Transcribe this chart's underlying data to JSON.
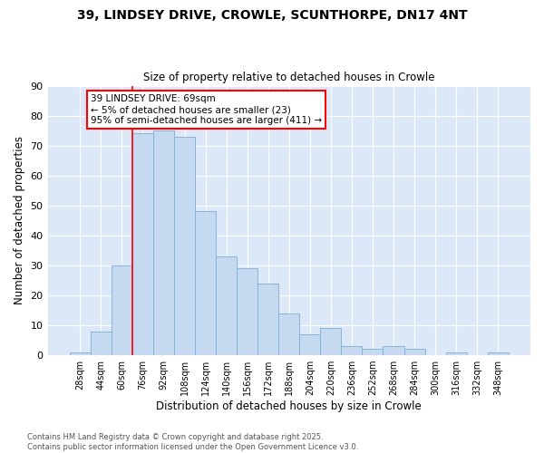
{
  "title_line1": "39, LINDSEY DRIVE, CROWLE, SCUNTHORPE, DN17 4NT",
  "title_line2": "Size of property relative to detached houses in Crowle",
  "xlabel": "Distribution of detached houses by size in Crowle",
  "ylabel": "Number of detached properties",
  "categories": [
    "28sqm",
    "44sqm",
    "60sqm",
    "76sqm",
    "92sqm",
    "108sqm",
    "124sqm",
    "140sqm",
    "156sqm",
    "172sqm",
    "188sqm",
    "204sqm",
    "220sqm",
    "236sqm",
    "252sqm",
    "268sqm",
    "284sqm",
    "300sqm",
    "316sqm",
    "332sqm",
    "348sqm"
  ],
  "values": [
    1,
    8,
    30,
    74,
    75,
    73,
    48,
    33,
    29,
    24,
    14,
    7,
    9,
    3,
    2,
    3,
    2,
    0,
    1,
    0,
    1
  ],
  "bar_color": "#c5d9f0",
  "bar_edge_color": "#7bafd4",
  "red_line_x": 2.5,
  "annotation_text": "39 LINDSEY DRIVE: 69sqm\n← 5% of detached houses are smaller (23)\n95% of semi-detached houses are larger (411) →",
  "ylim": [
    0,
    90
  ],
  "yticks": [
    0,
    10,
    20,
    30,
    40,
    50,
    60,
    70,
    80,
    90
  ],
  "footer_line1": "Contains HM Land Registry data © Crown copyright and database right 2025.",
  "footer_line2": "Contains public sector information licensed under the Open Government Licence v3.0.",
  "fig_bg_color": "#ffffff",
  "plot_bg_color": "#dce8f8",
  "grid_color": "#ffffff"
}
